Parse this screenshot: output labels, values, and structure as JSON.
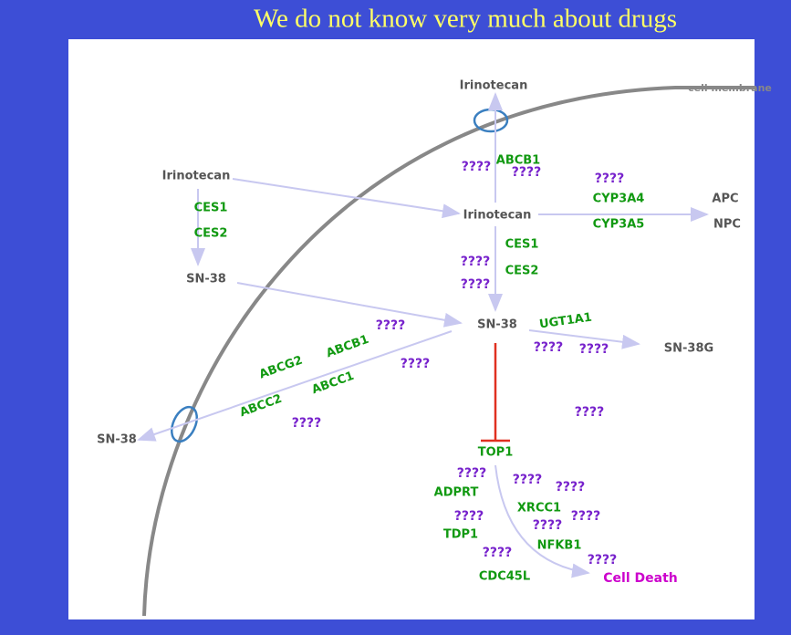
{
  "title": "We do not know very much about drugs",
  "membrane_label": "cell membrane",
  "compounds": [
    "Irinotecan",
    "Irinotecan",
    "Irinotecan",
    "APC",
    "NPC",
    "SN-38",
    "SN-38",
    "SN-38G",
    "SN-38",
    "Cell Death"
  ],
  "genes": [
    "ABCB1",
    "CES1",
    "CES2",
    "CYP3A4",
    "CYP3A5",
    "CES1",
    "CES2",
    "UGT1A1",
    "ABCG2",
    "ABCB1",
    "ABCC1",
    "ABCC2",
    "TOP1",
    "ADPRT",
    "XRCC1",
    "TDP1",
    "NFKB1",
    "CDC45L"
  ],
  "unknowns": [
    "????",
    "????",
    "????",
    "????",
    "????",
    "????",
    "????",
    "????",
    "????",
    "????",
    "????",
    "????",
    "????",
    "????",
    "????",
    "????",
    "????",
    "????",
    "????"
  ]
}
